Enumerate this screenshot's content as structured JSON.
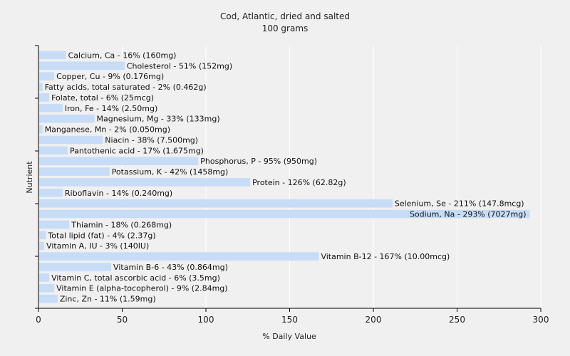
{
  "chart_data": {
    "type": "bar",
    "orientation": "horizontal",
    "title": "Cod, Atlantic, dried and salted",
    "subtitle": "100 grams",
    "xlabel": "% Daily Value",
    "ylabel": "Nutrient",
    "xlim": [
      0,
      300
    ],
    "xticks": [
      0,
      50,
      100,
      150,
      200,
      250,
      300
    ],
    "grid": true,
    "colors": {
      "bar": "#c6dcf7",
      "background": "#f0f0f0",
      "grid": "#ffffff"
    },
    "categories": [
      "Calcium, Ca",
      "Cholesterol",
      "Copper, Cu",
      "Fatty acids, total saturated",
      "Folate, total",
      "Iron, Fe",
      "Magnesium, Mg",
      "Manganese, Mn",
      "Niacin",
      "Pantothenic acid",
      "Phosphorus, P",
      "Potassium, K",
      "Protein",
      "Riboflavin",
      "Selenium, Se",
      "Sodium, Na",
      "Thiamin",
      "Total lipid (fat)",
      "Vitamin A, IU",
      "Vitamin B-12",
      "Vitamin B-6",
      "Vitamin C, total ascorbic acid",
      "Vitamin E (alpha-tocopherol)",
      "Zinc, Zn"
    ],
    "values": [
      16,
      51,
      9,
      2,
      6,
      14,
      33,
      2,
      38,
      17,
      95,
      42,
      126,
      14,
      211,
      293,
      18,
      4,
      3,
      167,
      43,
      6,
      9,
      11
    ],
    "labels": [
      "Calcium, Ca - 16% (160mg)",
      "Cholesterol - 51% (152mg)",
      "Copper, Cu - 9% (0.176mg)",
      "Fatty acids, total saturated - 2% (0.462g)",
      "Folate, total - 6% (25mcg)",
      "Iron, Fe - 14% (2.50mg)",
      "Magnesium, Mg - 33% (133mg)",
      "Manganese, Mn - 2% (0.050mg)",
      "Niacin - 38% (7.500mg)",
      "Pantothenic acid - 17% (1.675mg)",
      "Phosphorus, P - 95% (950mg)",
      "Potassium, K - 42% (1458mg)",
      "Protein - 126% (62.82g)",
      "Riboflavin - 14% (0.240mg)",
      "Selenium, Se - 211% (147.8mcg)",
      "Sodium, Na - 293% (7027mg)",
      "Thiamin - 18% (0.268mg)",
      "Total lipid (fat) - 4% (2.37g)",
      "Vitamin A, IU - 3% (140IU)",
      "Vitamin B-12 - 167% (10.00mcg)",
      "Vitamin B-6 - 43% (0.864mg)",
      "Vitamin C, total ascorbic acid - 6% (3.5mg)",
      "Vitamin E (alpha-tocopherol) - 9% (2.84mg)",
      "Zinc, Zn - 11% (1.59mg)"
    ]
  }
}
